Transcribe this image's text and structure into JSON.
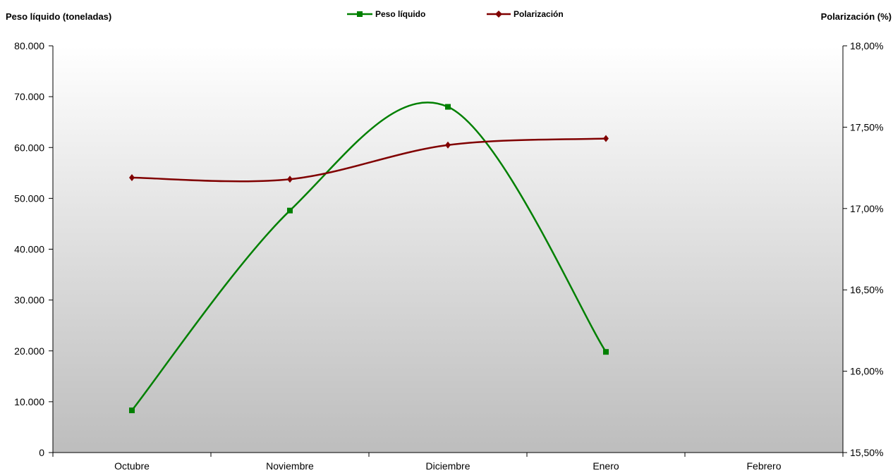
{
  "chart_data": {
    "type": "line",
    "title": "",
    "ylabel": "Peso líquido  (toneladas)",
    "y2label": "Polarización (%)",
    "categories": [
      "Octubre",
      "Noviembre",
      "Diciembre",
      "Enero",
      "Febrero"
    ],
    "ylim": [
      0,
      80000
    ],
    "y2lim": [
      15.5,
      18.0
    ],
    "yticks": [
      "0",
      "10.000",
      "20.000",
      "30.000",
      "40.000",
      "50.000",
      "60.000",
      "70.000",
      "80.000"
    ],
    "y2ticks": [
      "15,50%",
      "16,00%",
      "16,50%",
      "17,00%",
      "17,50%",
      "18,00%"
    ],
    "legend_position": "top-center",
    "grid": false,
    "series": [
      {
        "name": "Peso líquido",
        "axis": "left",
        "color": "#008000",
        "marker": "square",
        "values": [
          8300,
          47600,
          68000,
          19800,
          null
        ]
      },
      {
        "name": "Polarización",
        "axis": "right",
        "color": "#800000",
        "marker": "diamond",
        "values": [
          17.19,
          17.18,
          17.39,
          17.43,
          null
        ]
      }
    ]
  }
}
